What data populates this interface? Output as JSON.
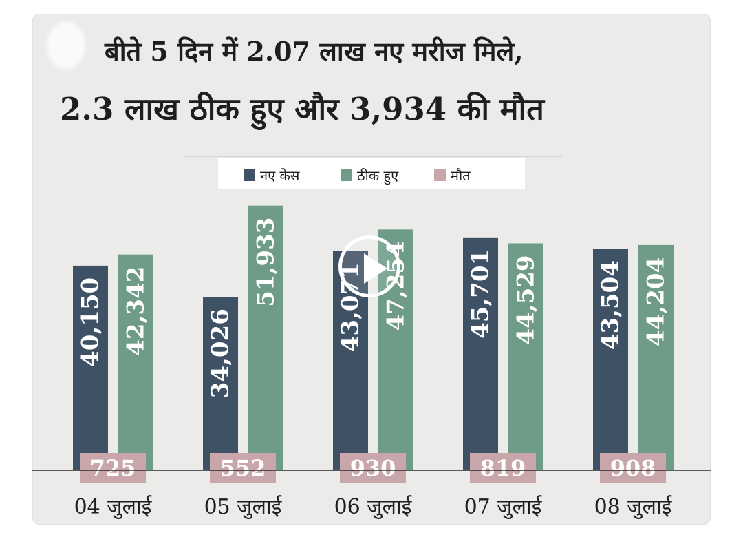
{
  "title": {
    "line1": "बीते 5 दिन में 2.07 लाख नए मरीज मिले,",
    "line2": "2.3 लाख ठीक हुए और 3,934 की मौत"
  },
  "colors": {
    "new_cases": "#3f5164",
    "recovered": "#6f9c88",
    "deaths": "#c8a6aa",
    "background": "#ebebe9"
  },
  "chart_data": {
    "type": "bar",
    "categories": [
      "04 जुलाई",
      "05 जुलाई",
      "06 जुलाई",
      "07 जुलाई",
      "08 जुलाई"
    ],
    "series": [
      {
        "name": "नए केस",
        "values": [
          40150,
          34026,
          43071,
          45701,
          43504
        ],
        "labels": [
          "40,150",
          "34,026",
          "43,071",
          "45,701",
          "43,504"
        ]
      },
      {
        "name": "ठीक हुए",
        "values": [
          42342,
          51933,
          47254,
          44529,
          44204
        ],
        "labels": [
          "42,342",
          "51,933",
          "47,254",
          "44,529",
          "44,204"
        ]
      },
      {
        "name": "मौत",
        "values": [
          725,
          552,
          930,
          819,
          908
        ],
        "labels": [
          "725",
          "552",
          "930",
          "819",
          "908"
        ]
      }
    ],
    "legend_position": "top-center",
    "ylim": [
      0,
      55000
    ],
    "grid": false
  },
  "video_overlay": {
    "icon": "play-icon"
  }
}
